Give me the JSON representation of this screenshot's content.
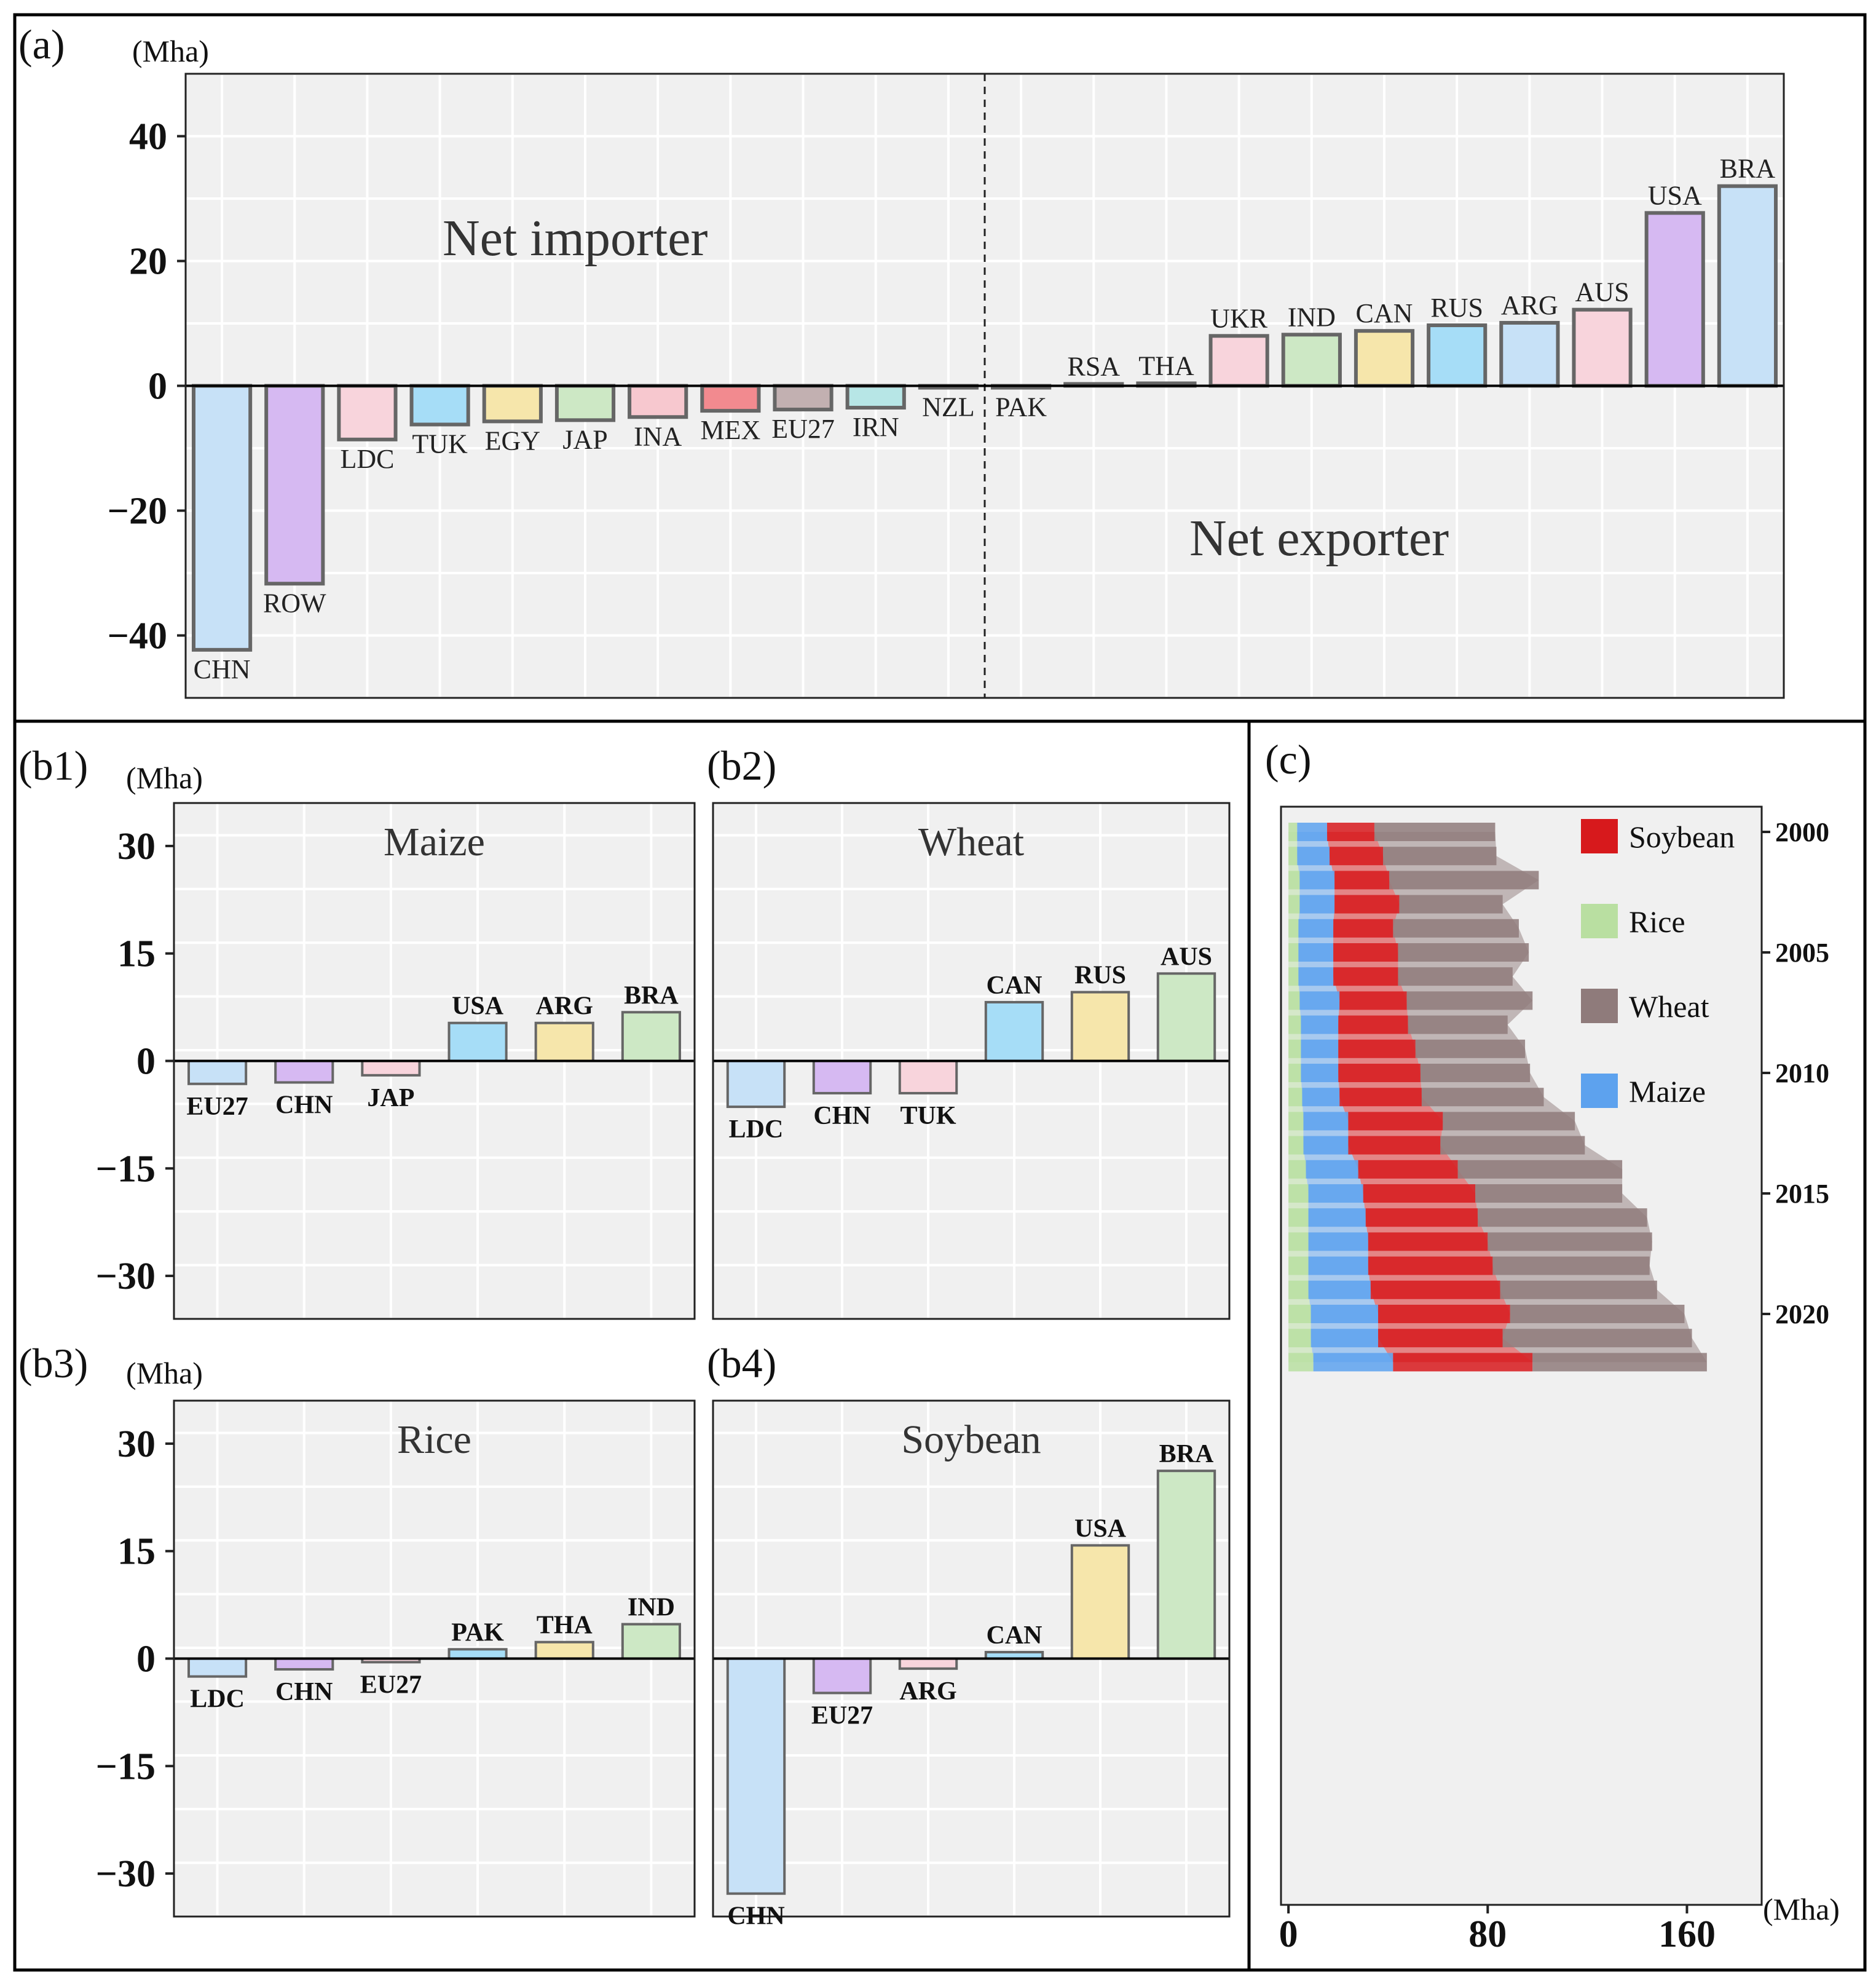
{
  "chart_data": [
    {
      "id": "a",
      "type": "bar",
      "panel_label": "(a)",
      "unit": "(Mha)",
      "ylim": [
        -50,
        50
      ],
      "yticks": [
        40,
        20,
        0,
        -20,
        -40
      ],
      "annotations": [
        "Net importer",
        "Net exporter"
      ],
      "categories": [
        "CHN",
        "ROW",
        "LDC",
        "TUK",
        "EGY",
        "JAP",
        "INA",
        "MEX",
        "EU27",
        "IRN",
        "NZL",
        "PAK",
        "RSA",
        "THA",
        "UKR",
        "IND",
        "CAN",
        "RUS",
        "ARG",
        "AUS",
        "USA",
        "BRA"
      ],
      "values": [
        -42.3,
        -31.7,
        -8.6,
        -6.2,
        -5.7,
        -5.5,
        -5.0,
        -4.0,
        -3.8,
        -3.5,
        -0.3,
        -0.3,
        0.3,
        0.4,
        8.0,
        8.2,
        8.8,
        9.7,
        10.1,
        12.2,
        27.7,
        32.0
      ],
      "colors": [
        "#c7e1f7",
        "#d6b9f2",
        "#f8d4dc",
        "#a6ddf7",
        "#f6e6ab",
        "#cde8c5",
        "#f7c8cf",
        "#f28a8f",
        "#c2b0b1",
        "#b7e6e6",
        "#f0f0f0",
        "#f0f0f0",
        "#f0f0f0",
        "#f0f0f0",
        "#f8d4dc",
        "#cde8c5",
        "#f6e6ab",
        "#a6ddf7",
        "#c7e1f7",
        "#f8d4dc",
        "#d6b9f2",
        "#c7e1f7"
      ],
      "divider_after_category": "NZL"
    },
    {
      "id": "b1",
      "type": "bar",
      "panel_label": "(b1)",
      "unit": "(Mha)",
      "title": "Maize",
      "ylim": [
        -36,
        36
      ],
      "yticks": [
        30,
        15,
        0,
        -15,
        -30
      ],
      "categories": [
        "EU27",
        "CHN",
        "JAP",
        "USA",
        "ARG",
        "BRA"
      ],
      "values": [
        -3.2,
        -3.0,
        -2.0,
        5.3,
        5.3,
        6.8
      ],
      "colors": [
        "#c7e1f7",
        "#d6b9f2",
        "#f8d4dc",
        "#a6ddf7",
        "#f6e6ab",
        "#cde8c5"
      ]
    },
    {
      "id": "b2",
      "type": "bar",
      "panel_label": "(b2)",
      "title": "Wheat",
      "ylim": [
        -36,
        36
      ],
      "categories": [
        "LDC",
        "CHN",
        "TUK",
        "CAN",
        "RUS",
        "AUS"
      ],
      "values": [
        -6.4,
        -4.5,
        -4.5,
        8.2,
        9.6,
        12.2
      ],
      "colors": [
        "#c7e1f7",
        "#d6b9f2",
        "#f8d4dc",
        "#a6ddf7",
        "#f6e6ab",
        "#cde8c5"
      ]
    },
    {
      "id": "b3",
      "type": "bar",
      "panel_label": "(b3)",
      "unit": "(Mha)",
      "title": "Rice",
      "ylim": [
        -36,
        36
      ],
      "yticks": [
        30,
        15,
        0,
        -15,
        -30
      ],
      "categories": [
        "LDC",
        "CHN",
        "EU27",
        "PAK",
        "THA",
        "IND"
      ],
      "values": [
        -2.5,
        -1.5,
        -0.5,
        1.3,
        2.3,
        4.8
      ],
      "colors": [
        "#c7e1f7",
        "#d6b9f2",
        "#f8d4dc",
        "#a6ddf7",
        "#f6e6ab",
        "#cde8c5"
      ]
    },
    {
      "id": "b4",
      "type": "bar",
      "panel_label": "(b4)",
      "title": "Soybean",
      "ylim": [
        -36,
        36
      ],
      "categories": [
        "CHN",
        "EU27",
        "ARG",
        "CAN",
        "USA",
        "BRA"
      ],
      "values": [
        -32.8,
        -4.8,
        -1.4,
        0.9,
        15.8,
        26.2
      ],
      "colors": [
        "#c7e1f7",
        "#d6b9f2",
        "#f8d4dc",
        "#a6ddf7",
        "#f6e6ab",
        "#cde8c5"
      ]
    },
    {
      "id": "c",
      "type": "area",
      "panel_label": "(c)",
      "unit": "(Mha)",
      "orientation": "horizontal-stacked",
      "xlim": [
        -3,
        190
      ],
      "xticks": [
        0,
        80,
        160
      ],
      "year_ticks": [
        "2000",
        "2005",
        "2010",
        "2015",
        "2020"
      ],
      "years": [
        2000,
        2001,
        2002,
        2003,
        2004,
        2005,
        2006,
        2007,
        2008,
        2009,
        2010,
        2011,
        2012,
        2013,
        2014,
        2015,
        2016,
        2017,
        2018,
        2019,
        2020,
        2021,
        2022
      ],
      "legend": [
        {
          "name": "Soybean",
          "color": "#d7191c"
        },
        {
          "name": "Rice",
          "color": "#b9dfa1"
        },
        {
          "name": "Wheat",
          "color": "#8f7b7b"
        },
        {
          "name": "Maize",
          "color": "#5da2ee"
        }
      ],
      "series": [
        {
          "name": "Rice",
          "values": [
            3.5,
            3.5,
            4.5,
            4.5,
            4,
            4,
            4,
            4.5,
            5,
            5,
            5,
            5.5,
            6,
            6,
            7,
            8,
            8,
            8,
            8,
            8,
            9,
            9,
            10
          ]
        },
        {
          "name": "Maize",
          "values": [
            12,
            13,
            14,
            14,
            14,
            14,
            14,
            16,
            15,
            15,
            15,
            15,
            18,
            18,
            21,
            22,
            23,
            24,
            24,
            25,
            27,
            27,
            32
          ]
        },
        {
          "name": "Soybean",
          "values": [
            19,
            21.5,
            22,
            26,
            24,
            26,
            26,
            27,
            28,
            31,
            33,
            33,
            38,
            37,
            40,
            45,
            45,
            48,
            50,
            52,
            53,
            50,
            56
          ]
        },
        {
          "name": "Wheat",
          "values": [
            48.5,
            45.5,
            60,
            41.5,
            50.5,
            52.5,
            46,
            50.5,
            40,
            44,
            44,
            49,
            53,
            58,
            66,
            59,
            68,
            66,
            63,
            63,
            70,
            76,
            70
          ]
        }
      ]
    }
  ]
}
